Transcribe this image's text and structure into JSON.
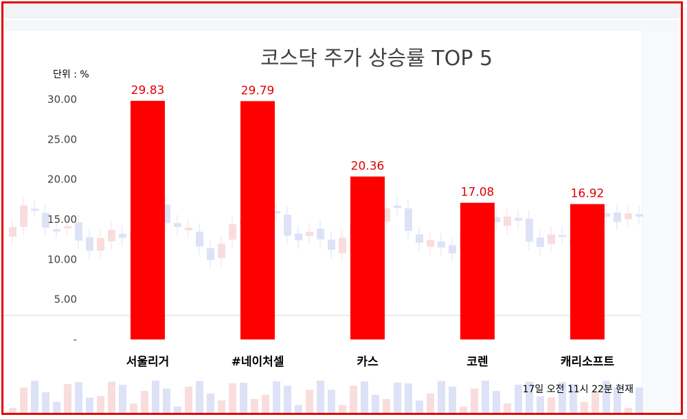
{
  "chart_data": {
    "type": "bar",
    "title": "코스닥 주가 상승률 TOP 5",
    "unit_label": "단위 : %",
    "categories": [
      "서울리거",
      "#네이처셀",
      "카스",
      "코렌",
      "캐리소프트"
    ],
    "values": [
      29.83,
      29.79,
      20.36,
      17.08,
      16.92
    ],
    "value_labels": [
      "29.83",
      "29.79",
      "20.36",
      "17.08",
      "16.92"
    ],
    "yticks": [
      "-",
      "5.00",
      "10.00",
      "15.00",
      "20.00",
      "25.00",
      "30.00"
    ],
    "ytick_values": [
      0,
      5,
      10,
      15,
      20,
      25,
      30
    ],
    "ylim": [
      0,
      30
    ],
    "grid": false,
    "bar_color": "#ff0000",
    "label_color": "#e00000",
    "footnote": "17일 오전 11시 22분 현재"
  }
}
